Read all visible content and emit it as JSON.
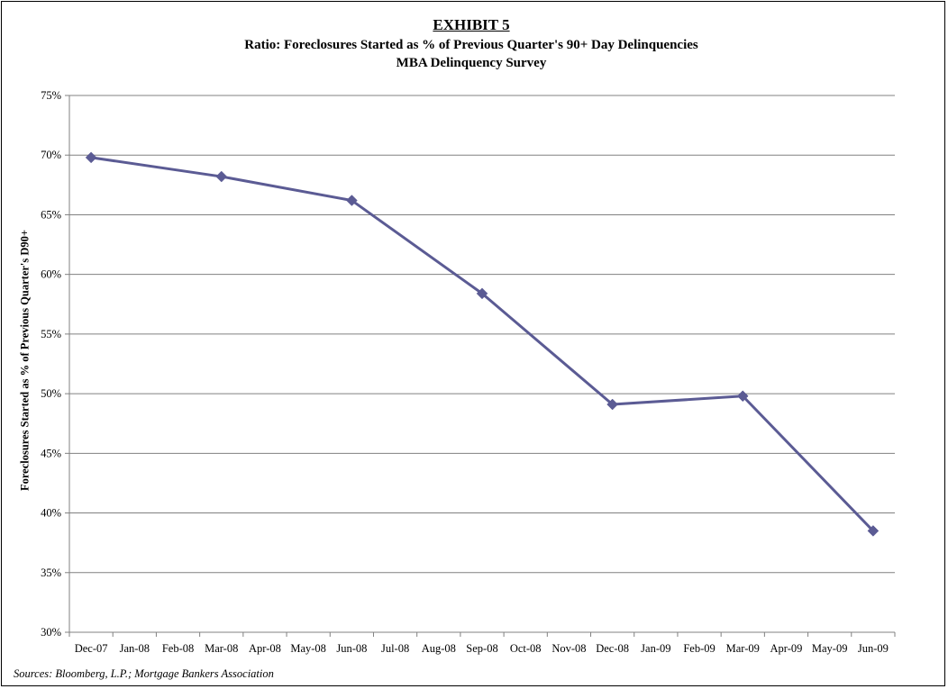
{
  "header": {
    "exhibit": "EXHIBIT 5",
    "title": "Ratio:  Foreclosures Started as % of Previous Quarter's 90+ Day Delinquencies",
    "subtitle": "MBA Delinquency Survey"
  },
  "footer": {
    "source": "Sources:  Bloomberg, L.P.; Mortgage Bankers Association"
  },
  "chart_data": {
    "type": "line",
    "title": "Ratio:  Foreclosures Started as % of Previous Quarter's 90+ Day Delinquencies",
    "subtitle": "MBA Delinquency Survey",
    "xlabel": "",
    "ylabel": "Foreclosures Started as % of Previous Quarter's D90+",
    "categories": [
      "Dec-07",
      "Jan-08",
      "Feb-08",
      "Mar-08",
      "Apr-08",
      "May-08",
      "Jun-08",
      "Jul-08",
      "Aug-08",
      "Sep-08",
      "Oct-08",
      "Nov-08",
      "Dec-08",
      "Jan-09",
      "Feb-09",
      "Mar-09",
      "Apr-09",
      "May-09",
      "Jun-09"
    ],
    "yticks": [
      "30%",
      "35%",
      "40%",
      "45%",
      "50%",
      "55%",
      "60%",
      "65%",
      "70%",
      "75%"
    ],
    "ylim": [
      30,
      75
    ],
    "grid": true,
    "series": [
      {
        "color": "#5b5b94",
        "points": [
          {
            "x": "Dec-07",
            "y": 69.8
          },
          {
            "x": "Mar-08",
            "y": 68.2
          },
          {
            "x": "Jun-08",
            "y": 66.2
          },
          {
            "x": "Sep-08",
            "y": 58.4
          },
          {
            "x": "Dec-08",
            "y": 49.1
          },
          {
            "x": "Mar-09",
            "y": 49.8
          },
          {
            "x": "Jun-09",
            "y": 38.5
          }
        ]
      }
    ]
  }
}
